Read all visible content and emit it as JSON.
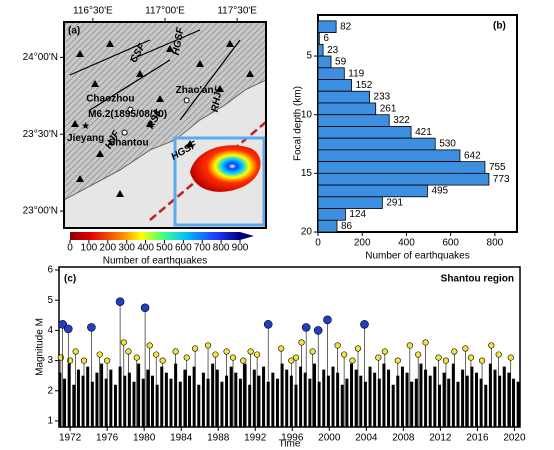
{
  "chart_data": [
    {
      "type": "map",
      "panel": "(a)",
      "xlim": [
        116.3,
        117.7
      ],
      "ylim": [
        22.89,
        24.23
      ],
      "xticks": [
        {
          "value": 116.5,
          "label": "116°30'E"
        },
        {
          "value": 117.0,
          "label": "117°00'E"
        },
        {
          "value": 117.5,
          "label": "117°30'E"
        }
      ],
      "yticks": [
        {
          "value": 24.0,
          "label": "24°00'N"
        },
        {
          "value": 23.5,
          "label": "23°30'N"
        },
        {
          "value": 23.0,
          "label": "23°00'N"
        }
      ],
      "places": [
        {
          "name": "Zhao'an",
          "lon": 117.15,
          "lat": 23.72
        },
        {
          "name": "Chaozhou",
          "lon": 116.76,
          "lat": 23.66
        },
        {
          "name": "Shantou",
          "lon": 116.72,
          "lat": 23.51
        },
        {
          "name": "Jieyang",
          "lon": 116.45,
          "lat": 23.55
        }
      ],
      "epicenter": {
        "label": "M6.2(1895/08/30)",
        "lon": 116.45,
        "lat": 23.55
      },
      "faults": [
        "CSF",
        "HGSF",
        "RHJF",
        "RSF",
        "HJF",
        "HGSF"
      ],
      "colorbar": {
        "label": "Number of earthquakes",
        "lim": [
          0,
          900
        ],
        "ticks": [
          0,
          100,
          200,
          300,
          400,
          500,
          600,
          700,
          800,
          900
        ]
      }
    },
    {
      "type": "histogram",
      "orientation": "horizontal",
      "panel": "(b)",
      "color": "#3f8fe0",
      "bins": [
        2,
        3,
        4,
        5,
        6,
        7,
        8,
        9,
        10,
        11,
        12,
        13,
        14,
        15,
        16,
        17,
        18,
        19,
        20
      ],
      "values": [
        82,
        6,
        23,
        59,
        119,
        152,
        233,
        261,
        322,
        421,
        530,
        642,
        755,
        773,
        495,
        291,
        124,
        86
      ],
      "xlim": [
        0,
        900
      ],
      "xticks": [
        0,
        200,
        400,
        600,
        800
      ],
      "ylim": [
        1.5,
        20
      ],
      "yticks": [
        5,
        10,
        15,
        20
      ],
      "xlabel": "Number of earthquakes",
      "ylabel": "Focal depth (km)"
    },
    {
      "type": "stem",
      "panel": "(c)",
      "title": "Shantou region",
      "xlabel": "Time",
      "ylabel": "Magnitude M",
      "xlim": [
        1970.8,
        2020.6
      ],
      "xticks": [
        1972,
        1976,
        1980,
        1984,
        1988,
        1992,
        1996,
        2000,
        2004,
        2008,
        2012,
        2016,
        2020
      ],
      "ylim": [
        0.8,
        6.1
      ],
      "yticks": [
        1,
        2,
        3,
        4,
        5,
        6
      ],
      "series": [
        {
          "color": "#000000",
          "marker": false,
          "x": [
            1970.9,
            1971.4,
            1971.9,
            1972.4,
            1972.9,
            1973.4,
            1973.9,
            1974.4,
            1974.9,
            1975.4,
            1975.9,
            1976.4,
            1976.9,
            1977.4,
            1977.9,
            1978.4,
            1978.9,
            1979.4,
            1979.9,
            1980.4,
            1980.9,
            1981.4,
            1981.9,
            1982.4,
            1982.9,
            1983.4,
            1983.9,
            1984.4,
            1984.9,
            1985.4,
            1985.9,
            1986.4,
            1986.9,
            1987.4,
            1987.9,
            1988.4,
            1988.9,
            1989.4,
            1989.9,
            1990.4,
            1990.9,
            1991.4,
            1991.9,
            1992.4,
            1992.9,
            1993.4,
            1993.9,
            1994.4,
            1994.9,
            1995.4,
            1995.9,
            1996.4,
            1996.9,
            1997.4,
            1997.9,
            1998.4,
            1998.9,
            1999.4,
            1999.9,
            2000.4,
            2000.9,
            2001.4,
            2001.9,
            2002.4,
            2002.9,
            2003.4,
            2003.9,
            2004.4,
            2004.9,
            2005.4,
            2005.9,
            2006.4,
            2006.9,
            2007.4,
            2007.9,
            2008.4,
            2008.9,
            2009.4,
            2009.9,
            2010.4,
            2010.9,
            2011.4,
            2011.9,
            2012.4,
            2012.9,
            2013.4,
            2013.9,
            2014.4,
            2014.9,
            2015.4,
            2015.9,
            2016.4,
            2016.9,
            2017.4,
            2017.9,
            2018.4,
            2018.9,
            2019.4,
            2019.9,
            2020.4
          ],
          "values": [
            2.6,
            2.4,
            2.9,
            2.2,
            2.7,
            2.5,
            2.8,
            2.3,
            2.6,
            2.9,
            2.4,
            2.7,
            2.2,
            2.8,
            2.5,
            2.6,
            2.3,
            2.9,
            2.4,
            2.7,
            2.5,
            2.2,
            2.8,
            2.6,
            2.4,
            2.9,
            2.3,
            2.7,
            2.5,
            2.8,
            2.2,
            2.6,
            2.4,
            2.9,
            2.7,
            2.3,
            2.5,
            2.8,
            2.6,
            2.4,
            2.9,
            2.2,
            2.7,
            2.5,
            2.8,
            2.3,
            2.6,
            2.4,
            2.9,
            2.7,
            2.5,
            2.2,
            2.8,
            2.6,
            2.4,
            2.9,
            2.3,
            2.7,
            2.5,
            2.8,
            2.6,
            2.2,
            2.4,
            2.9,
            2.7,
            2.5,
            2.3,
            2.8,
            2.6,
            2.4,
            2.9,
            2.7,
            2.2,
            2.5,
            2.8,
            2.6,
            2.3,
            2.4,
            2.9,
            2.7,
            2.5,
            2.8,
            2.2,
            2.6,
            2.4,
            2.9,
            2.3,
            2.7,
            2.5,
            2.8,
            2.6,
            2.4,
            2.2,
            2.9,
            2.7,
            2.5,
            2.8,
            2.6,
            2.4,
            2.3
          ]
        },
        {
          "color": "#f2e33c",
          "marker": true,
          "x": [
            1971.0,
            1972.0,
            1972.6,
            1973.5,
            1975.2,
            1976.0,
            1977.8,
            1978.3,
            1979.2,
            1980.6,
            1981.3,
            1982.0,
            1983.4,
            1984.6,
            1985.5,
            1986.9,
            1987.7,
            1988.9,
            1989.6,
            1990.7,
            1991.5,
            1992.2,
            1994.8,
            1995.9,
            1996.4,
            1997.0,
            1998.2,
            2000.9,
            2001.6,
            2002.5,
            2003.1,
            2005.3,
            2006.0,
            2007.4,
            2008.7,
            2009.6,
            2010.4,
            2011.8,
            2012.6,
            2013.5,
            2014.7,
            2015.3,
            2016.5,
            2017.5,
            2018.3,
            2019.6
          ],
          "values": [
            3.1,
            3.0,
            3.3,
            3.0,
            3.2,
            3.0,
            3.6,
            3.3,
            3.1,
            3.5,
            3.2,
            3.0,
            3.3,
            3.1,
            3.4,
            3.5,
            3.2,
            3.3,
            3.1,
            3.0,
            3.3,
            3.2,
            3.4,
            3.0,
            3.1,
            3.6,
            3.3,
            3.5,
            3.2,
            3.0,
            3.4,
            3.1,
            3.3,
            3.0,
            3.5,
            3.2,
            3.6,
            3.1,
            3.0,
            3.3,
            3.4,
            3.1,
            3.0,
            3.5,
            3.2,
            3.1
          ]
        },
        {
          "color": "#1f3fc4",
          "marker": true,
          "x": [
            1971.2,
            1971.8,
            1974.3,
            1977.4,
            1980.1,
            1993.4,
            1997.5,
            1998.8,
            1999.8,
            2003.8
          ],
          "values": [
            4.2,
            4.05,
            4.1,
            4.95,
            4.75,
            4.2,
            4.1,
            4.0,
            4.35,
            4.2
          ]
        }
      ]
    }
  ]
}
